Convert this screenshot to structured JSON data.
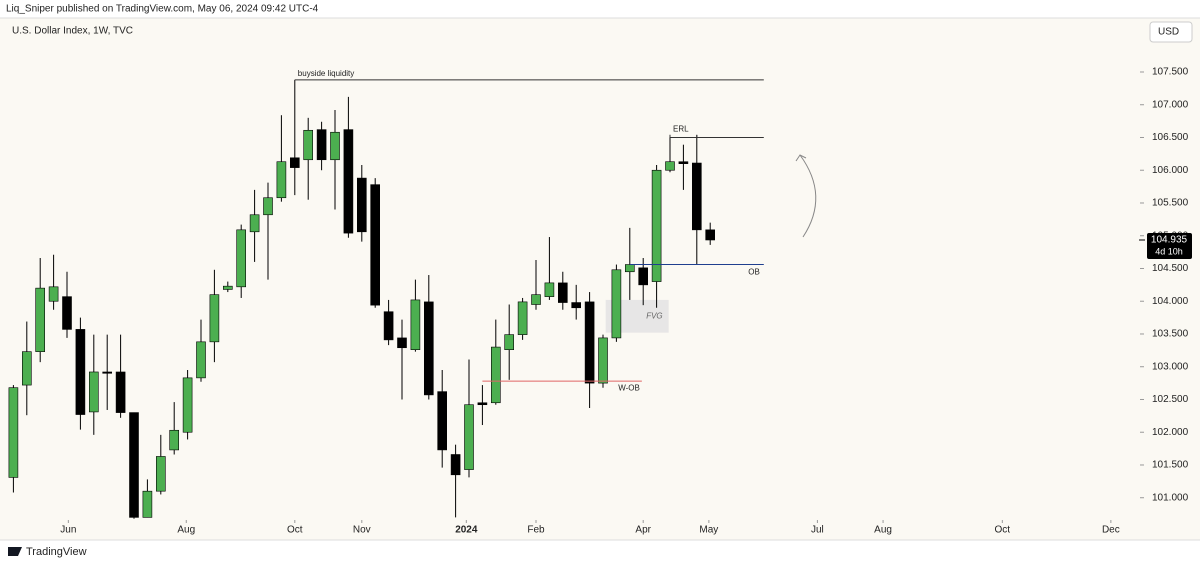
{
  "header": {
    "publisher": "Liq_Sniper published on TradingView.com, May 06, 2024 09:42 UTC-4",
    "brand": "TradingView"
  },
  "chart_data": {
    "type": "candlestick",
    "title": "U.S. Dollar Index, 1W, TVC",
    "currency": "USD",
    "categories": [
      null,
      null,
      null,
      null,
      null,
      null,
      null,
      null,
      null,
      null,
      null,
      null,
      null,
      null,
      null,
      null,
      null,
      null,
      null,
      null,
      null,
      null,
      null,
      null,
      null,
      null,
      null,
      null,
      null,
      null,
      null,
      null,
      null,
      null,
      null,
      null,
      null,
      null,
      null,
      null,
      null,
      null,
      null,
      null,
      null,
      null,
      null,
      null,
      null,
      null,
      null,
      null,
      null
    ],
    "open": [
      101.31,
      102.72,
      103.23,
      104.0,
      104.07,
      103.57,
      102.31,
      102.92,
      102.92,
      102.3,
      100.7,
      101.1,
      101.73,
      102.0,
      102.83,
      103.38,
      104.18,
      104.22,
      105.06,
      105.32,
      105.58,
      106.19,
      106.16,
      106.62,
      106.16,
      106.62,
      105.88,
      105.78,
      103.84,
      103.44,
      103.26,
      103.99,
      102.62,
      101.66,
      101.43,
      102.45,
      102.45,
      103.26,
      103.49,
      103.95,
      104.07,
      104.28,
      103.98,
      103.99,
      102.75,
      103.44,
      104.45,
      104.51,
      104.3,
      106.0,
      106.13,
      106.11,
      105.09
    ],
    "high": [
      102.72,
      103.69,
      104.66,
      104.71,
      104.45,
      103.75,
      103.49,
      103.49,
      103.49,
      102.3,
      101.28,
      101.96,
      102.46,
      102.95,
      103.72,
      104.48,
      104.3,
      105.17,
      105.7,
      105.81,
      106.84,
      107.38,
      106.8,
      106.74,
      106.92,
      107.12,
      106.08,
      105.88,
      104.02,
      103.72,
      104.33,
      104.4,
      102.95,
      101.81,
      103.11,
      102.72,
      103.72,
      103.95,
      104.05,
      104.63,
      104.98,
      104.45,
      104.25,
      104.14,
      103.49,
      104.56,
      105.12,
      104.66,
      106.08,
      106.54,
      106.39,
      106.54,
      105.2
    ],
    "low": [
      101.08,
      102.26,
      103.07,
      103.87,
      103.44,
      102.04,
      101.96,
      102.34,
      102.22,
      100.68,
      100.7,
      101.05,
      101.66,
      101.89,
      102.77,
      103.07,
      104.14,
      104.05,
      104.6,
      104.33,
      105.52,
      105.62,
      105.55,
      106.0,
      105.4,
      104.97,
      104.91,
      103.9,
      103.33,
      102.5,
      103.23,
      102.5,
      101.46,
      100.7,
      101.31,
      102.11,
      102.42,
      102.8,
      103.41,
      103.87,
      104.02,
      103.87,
      103.72,
      102.37,
      102.68,
      103.38,
      104.02,
      103.94,
      103.9,
      105.97,
      105.7,
      104.56,
      104.86
    ],
    "close": [
      102.68,
      103.23,
      104.2,
      104.22,
      103.57,
      102.27,
      102.92,
      102.9,
      102.3,
      100.7,
      101.1,
      101.63,
      102.03,
      102.83,
      103.38,
      104.1,
      104.23,
      105.09,
      105.32,
      105.58,
      106.13,
      106.04,
      106.61,
      106.16,
      106.58,
      105.04,
      105.06,
      103.94,
      103.41,
      103.29,
      104.02,
      102.57,
      101.73,
      101.35,
      102.42,
      102.42,
      103.3,
      103.49,
      103.99,
      104.1,
      104.28,
      103.98,
      103.9,
      102.75,
      103.44,
      104.48,
      104.56,
      104.25,
      106.0,
      106.13,
      106.1,
      105.09,
      104.935
    ],
    "up_color": "#4caf50",
    "down_color": "#000000",
    "ylim": [
      100.66,
      108.37
    ],
    "yticks": [
      {
        "value": 101,
        "label": "101.000"
      },
      {
        "value": 101.5,
        "label": "101.500"
      },
      {
        "value": 102,
        "label": "102.000"
      },
      {
        "value": 102.5,
        "label": "102.500"
      },
      {
        "value": 103,
        "label": "103.000"
      },
      {
        "value": 103.5,
        "label": "103.500"
      },
      {
        "value": 104,
        "label": "104.000"
      },
      {
        "value": 104.5,
        "label": "104.500"
      },
      {
        "value": 105,
        "label": "105.000"
      },
      {
        "value": 105.5,
        "label": "105.500"
      },
      {
        "value": 106,
        "label": "106.000"
      },
      {
        "value": 106.5,
        "label": "106.500"
      },
      {
        "value": 107,
        "label": "107.000"
      },
      {
        "value": 107.5,
        "label": "107.500"
      }
    ],
    "xlim": [
      -1,
      84
    ],
    "xticks": [
      {
        "value": 4.1,
        "label": "Jun"
      },
      {
        "value": 12.9,
        "label": "Aug"
      },
      {
        "value": 21,
        "label": "Oct"
      },
      {
        "value": 26,
        "label": "Nov"
      },
      {
        "value": 33.8,
        "label": "2024"
      },
      {
        "value": 39,
        "label": "Feb"
      },
      {
        "value": 47,
        "label": "Apr"
      },
      {
        "value": 51.9,
        "label": "May"
      },
      {
        "value": 60,
        "label": "Jul"
      },
      {
        "value": 64.9,
        "label": "Aug"
      },
      {
        "value": 73.8,
        "label": "Oct"
      },
      {
        "value": 81.9,
        "label": "Dec"
      }
    ],
    "last_price": 104.935,
    "countdown": "4d 10h",
    "annotations": [
      {
        "text": "buyside liquidity",
        "level": 107.38,
        "x0": 21,
        "x1": 56,
        "color": "#333333"
      },
      {
        "text": "ERL",
        "level": 106.5,
        "x0": 49,
        "x1": 56,
        "color": "#333333"
      },
      {
        "text": "OB",
        "level": 104.56,
        "x0": 46,
        "x1": 56,
        "color": "#1f3f8f"
      },
      {
        "text": "W-OB",
        "level": 102.78,
        "x0": 35,
        "x1": 46.9,
        "color": "#e06666"
      }
    ],
    "fvg": {
      "text": "FVG",
      "top": 104.02,
      "bottom": 103.52,
      "x0": 44.2,
      "x1": 48.9
    }
  }
}
